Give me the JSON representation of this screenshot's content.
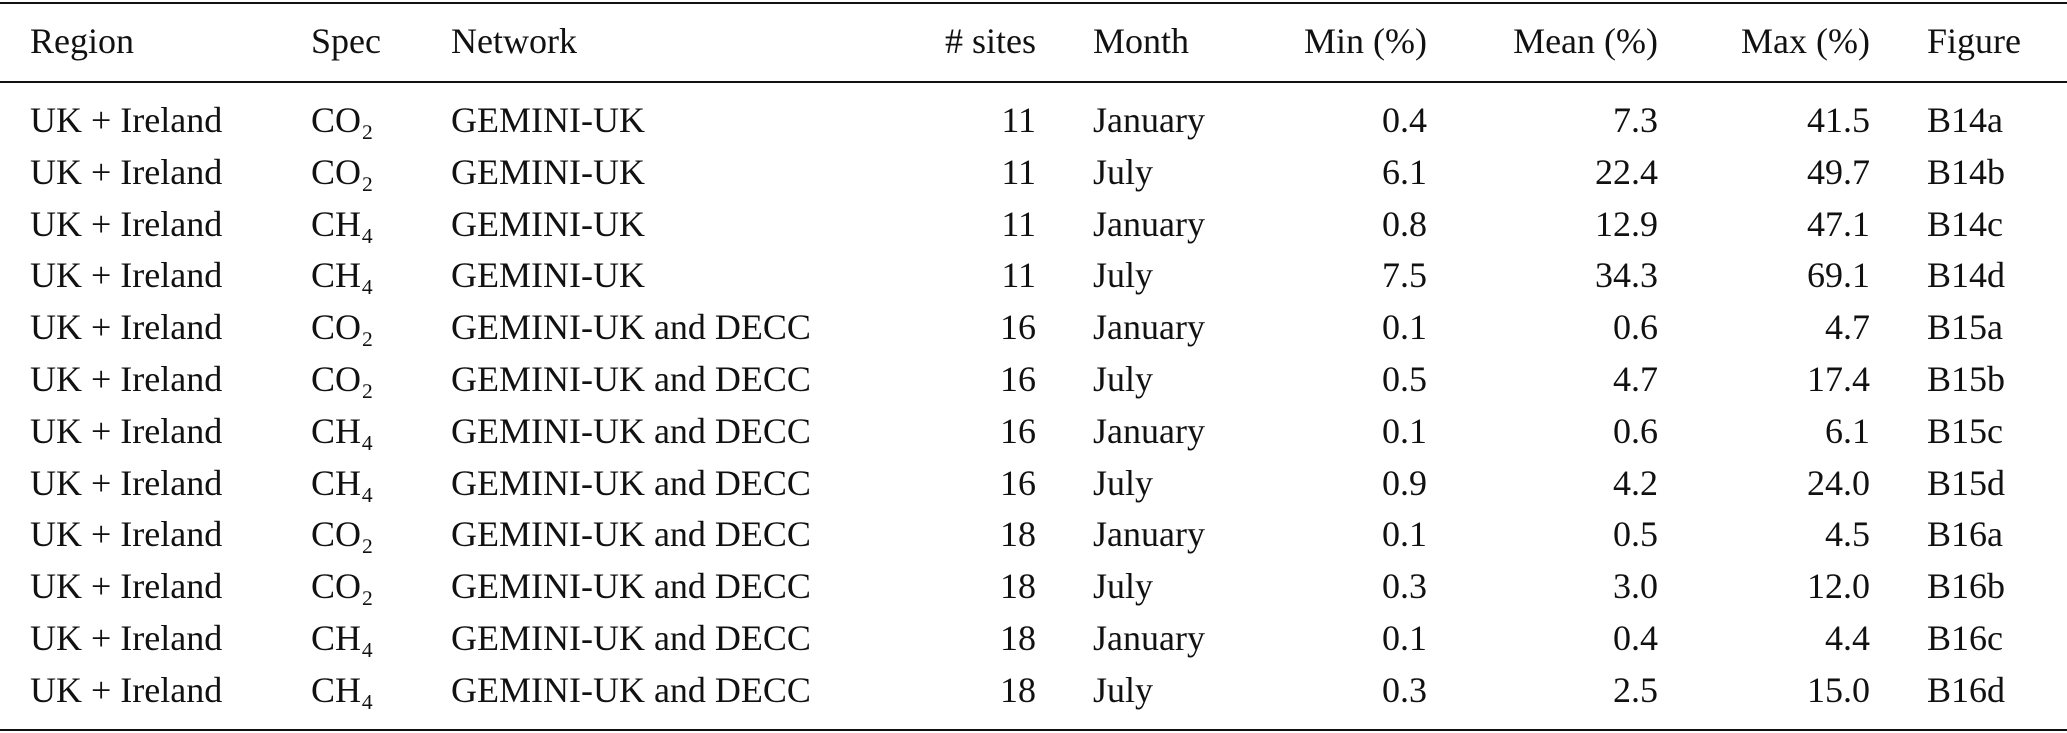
{
  "table": {
    "header": [
      "Region",
      "Spec",
      "Network",
      "# sites",
      "Month",
      "Min (%)",
      "Mean (%)",
      "Max (%)",
      "Figure"
    ],
    "rows": [
      [
        "UK + Ireland",
        "CO₂",
        "GEMINI-UK",
        "11",
        "January",
        "0.4",
        "7.3",
        "41.5",
        "B14a"
      ],
      [
        "UK + Ireland",
        "CO₂",
        "GEMINI-UK",
        "11",
        "July",
        "6.1",
        "22.4",
        "49.7",
        "B14b"
      ],
      [
        "UK + Ireland",
        "CH₄",
        "GEMINI-UK",
        "11",
        "January",
        "0.8",
        "12.9",
        "47.1",
        "B14c"
      ],
      [
        "UK + Ireland",
        "CH₄",
        "GEMINI-UK",
        "11",
        "July",
        "7.5",
        "34.3",
        "69.1",
        "B14d"
      ],
      [
        "UK + Ireland",
        "CO₂",
        "GEMINI-UK and DECC",
        "16",
        "January",
        "0.1",
        "0.6",
        "4.7",
        "B15a"
      ],
      [
        "UK + Ireland",
        "CO₂",
        "GEMINI-UK and DECC",
        "16",
        "July",
        "0.5",
        "4.7",
        "17.4",
        "B15b"
      ],
      [
        "UK + Ireland",
        "CH₄",
        "GEMINI-UK and DECC",
        "16",
        "January",
        "0.1",
        "0.6",
        "6.1",
        "B15c"
      ],
      [
        "UK + Ireland",
        "CH₄",
        "GEMINI-UK and DECC",
        "16",
        "July",
        "0.9",
        "4.2",
        "24.0",
        "B15d"
      ],
      [
        "UK + Ireland",
        "CO₂",
        "GEMINI-UK and DECC",
        "18",
        "January",
        "0.1",
        "0.5",
        "4.5",
        "B16a"
      ],
      [
        "UK + Ireland",
        "CO₂",
        "GEMINI-UK and DECC",
        "18",
        "July",
        "0.3",
        "3.0",
        "12.0",
        "B16b"
      ],
      [
        "UK + Ireland",
        "CH₄",
        "GEMINI-UK and DECC",
        "18",
        "January",
        "0.1",
        "0.4",
        "4.4",
        "B16c"
      ],
      [
        "UK + Ireland",
        "CH₄",
        "GEMINI-UK and DECC",
        "18",
        "July",
        "0.3",
        "2.5",
        "15.0",
        "B16d"
      ]
    ]
  }
}
